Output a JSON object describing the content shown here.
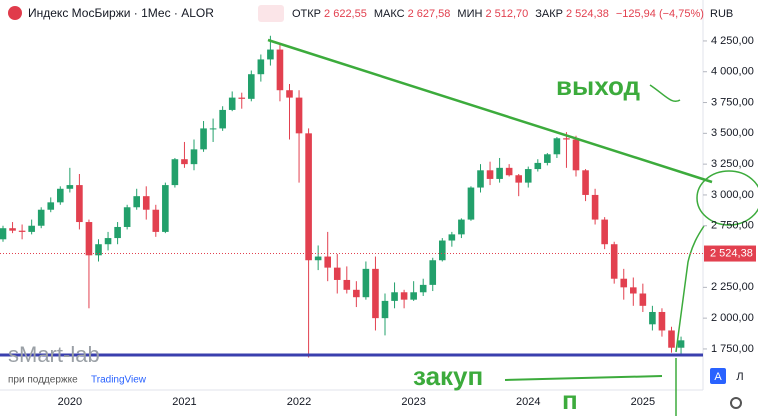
{
  "chart_data": {
    "type": "candlestick",
    "title": "Индекс МосБиржи · 1Мес · ALOR",
    "ohlc_header": [
      {
        "label": "ОТКР",
        "value": "2 622,55"
      },
      {
        "label": "МАКС",
        "value": "2 627,58"
      },
      {
        "label": "МИН",
        "value": "2 512,70"
      },
      {
        "label": "ЗАКР",
        "value": "2 524,38"
      }
    ],
    "change": "−125,94 (−4,75%)",
    "currency": "RUB",
    "categories": [
      null,
      null,
      null,
      null,
      null,
      null,
      null,
      "2020",
      null,
      null,
      null,
      null,
      null,
      null,
      null,
      null,
      null,
      null,
      null,
      "2021",
      null,
      null,
      null,
      null,
      null,
      null,
      null,
      null,
      null,
      null,
      null,
      "2022",
      null,
      null,
      null,
      null,
      null,
      null,
      null,
      null,
      null,
      null,
      null,
      "2023",
      null,
      null,
      null,
      null,
      null,
      null,
      null,
      null,
      null,
      null,
      null,
      "2024",
      null,
      null,
      null,
      null,
      null,
      null,
      null,
      null,
      null,
      null,
      null,
      "2025",
      null,
      null,
      null,
      null
    ],
    "open": [
      2640,
      2730,
      2710,
      2700,
      2750,
      2880,
      2940,
      3050,
      3080,
      2780,
      2510,
      2600,
      2650,
      2740,
      2900,
      2990,
      2880,
      2700,
      3080,
      3290,
      3250,
      3370,
      3540,
      3540,
      3690,
      3790,
      3780,
      3980,
      4100,
      4180,
      3850,
      3790,
      3500,
      2470,
      2500,
      2410,
      2310,
      2230,
      2170,
      2400,
      2000,
      2140,
      2210,
      2150,
      2210,
      2270,
      2470,
      2630,
      2680,
      2800,
      3060,
      3200,
      3130,
      3220,
      3160,
      3100,
      3210,
      3260,
      3330,
      3460,
      3450,
      3200,
      3000,
      2800,
      2600,
      2320,
      2250,
      2200,
      1950,
      2050,
      1900,
      1760
    ],
    "high": [
      2750,
      2780,
      2760,
      2800,
      2900,
      2980,
      3070,
      3220,
      3170,
      2800,
      2640,
      2700,
      2780,
      2920,
      3050,
      3070,
      2920,
      3100,
      3300,
      3430,
      3450,
      3600,
      3620,
      3720,
      3840,
      3830,
      4010,
      4140,
      4292,
      4230,
      3900,
      3850,
      3540,
      2590,
      2700,
      2520,
      2420,
      2300,
      2460,
      2500,
      2200,
      2290,
      2230,
      2300,
      2320,
      2490,
      2650,
      2700,
      2810,
      3070,
      3250,
      3270,
      3300,
      3250,
      3170,
      3230,
      3290,
      3340,
      3470,
      3510,
      3480,
      3210,
      3050,
      2820,
      2620,
      2400,
      2330,
      2280,
      2100,
      2080,
      1930,
      1850
    ],
    "low": [
      2620,
      2690,
      2640,
      2680,
      2730,
      2860,
      2920,
      3020,
      2720,
      2080,
      2460,
      2550,
      2600,
      2720,
      2880,
      2800,
      2660,
      2690,
      3060,
      3220,
      3200,
      3350,
      3430,
      3520,
      3680,
      3700,
      3760,
      3920,
      4050,
      3760,
      3450,
      3100,
      1681,
      2390,
      2300,
      2200,
      2200,
      2090,
      2150,
      1900,
      1860,
      2080,
      2080,
      2140,
      2180,
      2220,
      2460,
      2580,
      2650,
      2790,
      3020,
      3080,
      3100,
      3150,
      2990,
      3060,
      3190,
      3240,
      3300,
      3220,
      3150,
      2950,
      2760,
      2560,
      2280,
      2150,
      2100,
      2050,
      1900,
      1850,
      1720,
      1700
    ],
    "close": [
      2730,
      2710,
      2700,
      2750,
      2880,
      2940,
      3050,
      3080,
      2780,
      2510,
      2600,
      2650,
      2740,
      2900,
      2990,
      2880,
      2700,
      3080,
      3290,
      3250,
      3370,
      3540,
      3540,
      3690,
      3790,
      3780,
      3980,
      4100,
      4180,
      3850,
      3790,
      3500,
      2470,
      2500,
      2410,
      2310,
      2230,
      2170,
      2400,
      2000,
      2140,
      2210,
      2150,
      2210,
      2270,
      2470,
      2630,
      2680,
      2800,
      3060,
      3200,
      3130,
      3220,
      3160,
      3100,
      3210,
      3260,
      3330,
      3460,
      3450,
      3200,
      3000,
      2800,
      2600,
      2320,
      2250,
      2200,
      2100,
      2050,
      1900,
      1760,
      1820
    ],
    "up_color": "#22a06b",
    "down_color": "#e2404f",
    "ylim": [
      1433,
      4355
    ],
    "yticks": [
      {
        "value": 1750,
        "label": "1 750,00"
      },
      {
        "value": 2000,
        "label": "2 000,00"
      },
      {
        "value": 2250,
        "label": "2 250,00"
      },
      {
        "value": 2750,
        "label": "2 750,00"
      },
      {
        "value": 3000,
        "label": "3 000,00"
      },
      {
        "value": 3250,
        "label": "3 250,00"
      },
      {
        "value": 3500,
        "label": "3 500,00"
      },
      {
        "value": 3750,
        "label": "3 750,00"
      },
      {
        "value": 4000,
        "label": "4 000,00"
      },
      {
        "value": 4250,
        "label": "4 250,00"
      }
    ],
    "last_price": {
      "value": 2524.38,
      "label": "2 524,38"
    },
    "watermark": "sMart-lab",
    "watermark_sub": "при поддержке",
    "watermark_brand": "TradingView",
    "annotations": [
      "выход",
      "закуп",
      "п"
    ],
    "buttons": [
      "A",
      "Л"
    ]
  }
}
